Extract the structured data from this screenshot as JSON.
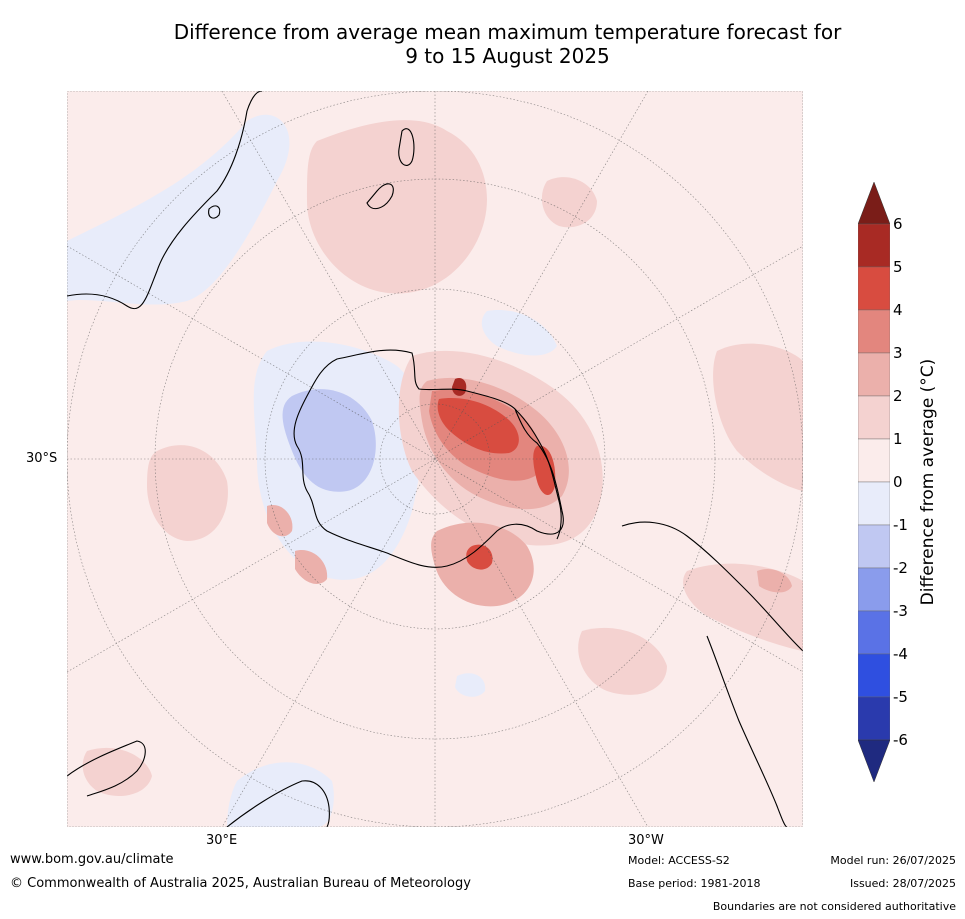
{
  "title_line1": "Difference from average mean maximum temperature forecast for",
  "title_line2": "9 to 15 August 2025",
  "axis_labels": {
    "lat": "30°S",
    "lon_east": "30°E",
    "lon_west": "30°W"
  },
  "legend": {
    "label": "Difference from average (°C)",
    "ticks": [
      "6",
      "5",
      "4",
      "3",
      "2",
      "1",
      "0",
      "-1",
      "-2",
      "-3",
      "-4",
      "-5",
      "-6"
    ],
    "colors": [
      "#1f2a80",
      "#2a3aad",
      "#2f4fe0",
      "#5a72e6",
      "#8a9cec",
      "#c0c8f2",
      "#e8ecfa",
      "#fbeceb",
      "#f4d2d0",
      "#ebb0ab",
      "#e3867e",
      "#d84c40",
      "#a82a24",
      "#7a1d18"
    ]
  },
  "footer": {
    "website": "www.bom.gov.au/climate",
    "copyright": "© Commonwealth of Australia 2025, Australian Bureau of Meteorology",
    "model": "Model: ACCESS-S2",
    "base_period": "Base period: 1981-2018",
    "model_run": "Model run: 26/07/2025",
    "issued": "Issued: 28/07/2025",
    "disclaimer": "Boundaries are not considered authoritative"
  }
}
